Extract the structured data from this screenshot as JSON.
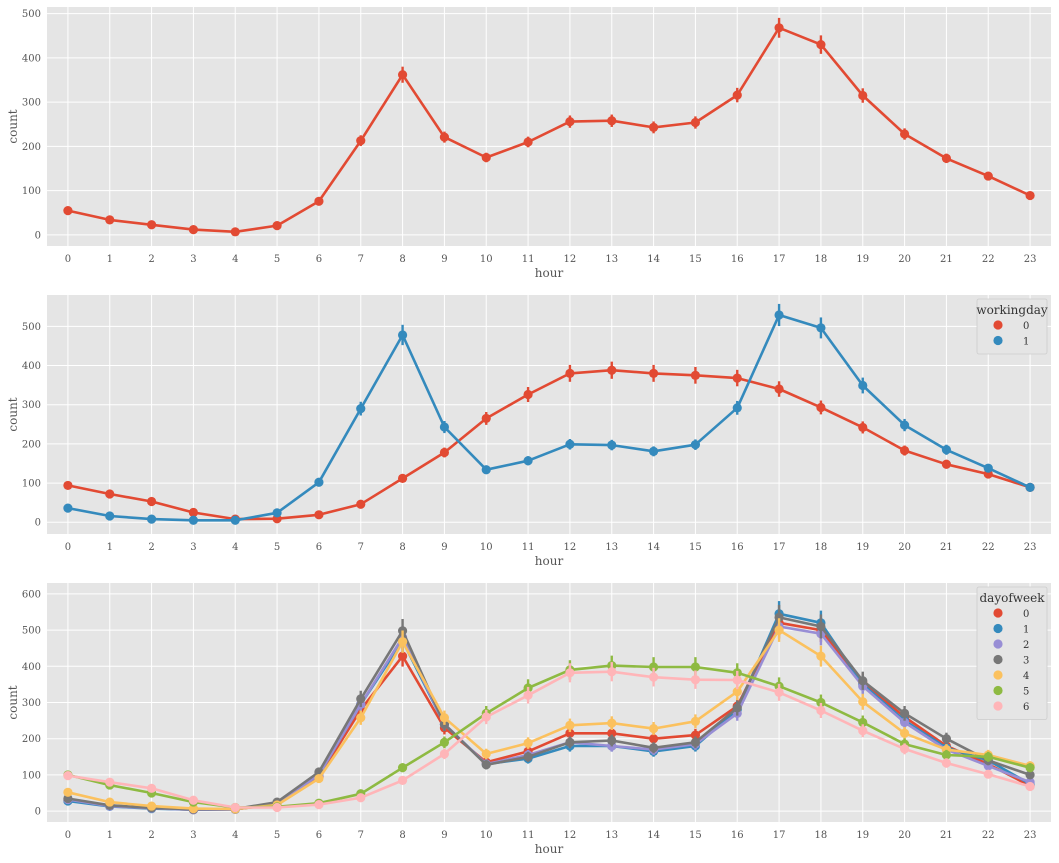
{
  "chart_data": [
    {
      "type": "line",
      "style": "pointplot with error bars",
      "x": [
        0,
        1,
        2,
        3,
        4,
        5,
        6,
        7,
        8,
        9,
        10,
        11,
        12,
        13,
        14,
        15,
        16,
        17,
        18,
        19,
        20,
        21,
        22,
        23
      ],
      "xlabel": "hour",
      "ylabel": "count",
      "ylim": [
        -25,
        515
      ],
      "yticks": [
        0,
        100,
        200,
        300,
        400,
        500
      ],
      "grid": true,
      "legend": null,
      "series": [
        {
          "color": "#E24A33",
          "values": [
            55,
            34,
            23,
            12,
            7,
            21,
            76,
            213,
            362,
            221,
            175,
            210,
            256,
            258,
            243,
            254,
            316,
            468,
            430,
            315,
            228,
            173,
            133,
            89
          ]
        }
      ]
    },
    {
      "type": "line",
      "style": "pointplot with error bars",
      "x": [
        0,
        1,
        2,
        3,
        4,
        5,
        6,
        7,
        8,
        9,
        10,
        11,
        12,
        13,
        14,
        15,
        16,
        17,
        18,
        19,
        20,
        21,
        22,
        23
      ],
      "xlabel": "hour",
      "ylabel": "count",
      "ylim": [
        -30,
        580
      ],
      "yticks": [
        0,
        100,
        200,
        300,
        400,
        500
      ],
      "grid": true,
      "legend": {
        "title": "workingday",
        "position": "top-right"
      },
      "series": [
        {
          "name": "0",
          "color": "#E24A33",
          "values": [
            94,
            72,
            53,
            25,
            8,
            9,
            19,
            46,
            112,
            178,
            265,
            326,
            380,
            388,
            380,
            375,
            368,
            340,
            293,
            242,
            183,
            148,
            123,
            89
          ]
        },
        {
          "name": "1",
          "color": "#348ABD",
          "values": [
            36,
            16,
            8,
            5,
            5,
            24,
            102,
            290,
            478,
            243,
            134,
            157,
            199,
            197,
            181,
            198,
            292,
            529,
            496,
            349,
            248,
            185,
            138,
            89
          ]
        }
      ]
    },
    {
      "type": "line",
      "style": "pointplot with error bars",
      "x": [
        0,
        1,
        2,
        3,
        4,
        5,
        6,
        7,
        8,
        9,
        10,
        11,
        12,
        13,
        14,
        15,
        16,
        17,
        18,
        19,
        20,
        21,
        22,
        23
      ],
      "xlabel": "hour",
      "ylabel": "count",
      "ylim": [
        -30,
        630
      ],
      "yticks": [
        0,
        100,
        200,
        300,
        400,
        500,
        600
      ],
      "grid": true,
      "legend": {
        "title": "dayofweek",
        "position": "top-right"
      },
      "series": [
        {
          "name": "0",
          "color": "#E24A33",
          "values": [
            30,
            15,
            8,
            4,
            5,
            20,
            95,
            280,
            428,
            230,
            135,
            165,
            215,
            215,
            200,
            210,
            290,
            520,
            500,
            355,
            260,
            180,
            130,
            70
          ]
        },
        {
          "name": "1",
          "color": "#348ABD",
          "values": [
            28,
            13,
            7,
            4,
            5,
            22,
            100,
            295,
            470,
            240,
            130,
            145,
            180,
            180,
            165,
            180,
            280,
            545,
            520,
            350,
            250,
            175,
            140,
            75
          ]
        },
        {
          "name": "2",
          "color": "#988ED5",
          "values": [
            32,
            14,
            8,
            4,
            5,
            22,
            100,
            295,
            480,
            240,
            130,
            155,
            190,
            180,
            170,
            185,
            270,
            510,
            490,
            345,
            245,
            170,
            125,
            80
          ]
        },
        {
          "name": "3",
          "color": "#777777",
          "values": [
            35,
            16,
            9,
            5,
            6,
            25,
            108,
            310,
            498,
            240,
            128,
            150,
            190,
            195,
            175,
            190,
            285,
            535,
            510,
            360,
            270,
            200,
            140,
            100
          ]
        },
        {
          "name": "4",
          "color": "#FBC15E",
          "values": [
            52,
            25,
            14,
            7,
            6,
            17,
            90,
            258,
            468,
            258,
            158,
            188,
            237,
            243,
            228,
            248,
            330,
            500,
            428,
            302,
            215,
            170,
            155,
            125
          ]
        },
        {
          "name": "5",
          "color": "#8EBA42",
          "values": [
            100,
            72,
            50,
            25,
            10,
            12,
            22,
            48,
            120,
            190,
            270,
            340,
            390,
            402,
            398,
            398,
            382,
            345,
            300,
            245,
            185,
            155,
            150,
            120
          ]
        },
        {
          "name": "6",
          "color": "#FFB5B8",
          "values": [
            98,
            80,
            63,
            30,
            10,
            10,
            18,
            37,
            85,
            158,
            260,
            320,
            382,
            385,
            370,
            363,
            362,
            328,
            278,
            222,
            172,
            133,
            102,
            68
          ]
        }
      ]
    }
  ]
}
